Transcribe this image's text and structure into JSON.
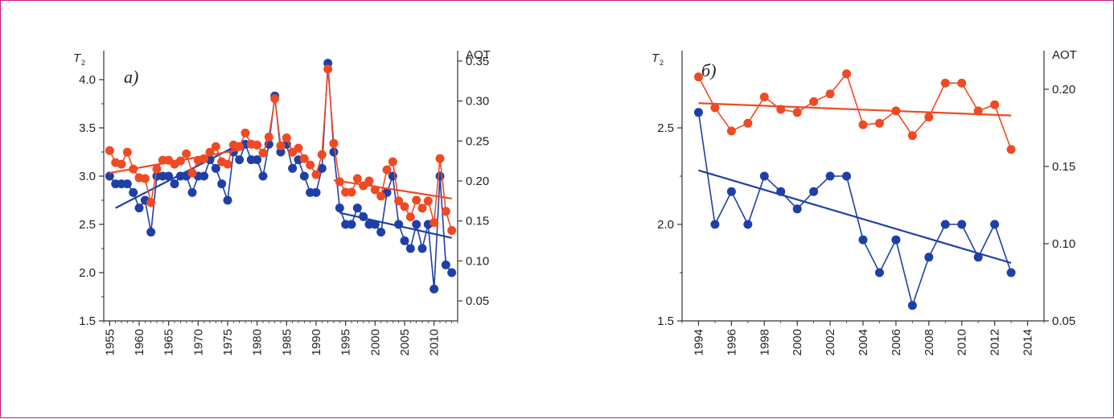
{
  "colors": {
    "t2": "#1f3fa8",
    "aot": "#ef4a23",
    "border": "#c8197c",
    "axis": "#333333"
  },
  "chart_data": [
    {
      "type": "line",
      "panel_label": "a)",
      "left_axis_label": "T",
      "left_axis_label_sub": "2",
      "right_axis_label": "AOT",
      "x_ticks": [
        "1955",
        "1960",
        "1965",
        "1970",
        "1975",
        "1980",
        "1985",
        "1990",
        "1995",
        "2000",
        "2005",
        "2010"
      ],
      "y_left_ticks": [
        "1.5",
        "2.0",
        "2.5",
        "3.0",
        "3.5",
        "4.0"
      ],
      "y_right_ticks": [
        "0.05",
        "0.10",
        "0.15",
        "0.20",
        "0.25",
        "0.30",
        "0.35"
      ],
      "xlim": [
        1954,
        2014
      ],
      "ylim_left": [
        1.5,
        4.3
      ],
      "ylim_right": [
        0.025,
        0.363
      ],
      "series": [
        {
          "axis": "left",
          "color_key": "t2",
          "x": [
            1955,
            1956,
            1957,
            1958,
            1959,
            1960,
            1961,
            1962,
            1963,
            1964,
            1965,
            1966,
            1967,
            1968,
            1969,
            1970,
            1971,
            1972,
            1973,
            1974,
            1975,
            1976,
            1977,
            1978,
            1979,
            1980,
            1981,
            1982,
            1983,
            1984,
            1985,
            1986,
            1987,
            1988,
            1989,
            1990,
            1991,
            1992,
            1993,
            1994,
            1995,
            1996,
            1997,
            1998,
            1999,
            2000,
            2001,
            2002,
            2003,
            2004,
            2005,
            2006,
            2007,
            2008,
            2009,
            2010,
            2011,
            2012,
            2013
          ],
          "y": [
            3.0,
            2.92,
            2.92,
            2.92,
            2.83,
            2.67,
            2.75,
            2.42,
            3.0,
            3.0,
            3.0,
            2.92,
            3.0,
            3.0,
            2.83,
            3.0,
            3.0,
            3.17,
            3.08,
            2.92,
            2.75,
            3.25,
            3.17,
            3.33,
            3.17,
            3.17,
            3.0,
            3.33,
            3.83,
            3.25,
            3.33,
            3.08,
            3.17,
            3.0,
            2.83,
            2.83,
            3.08,
            4.17,
            3.25,
            2.67,
            2.5,
            2.5,
            2.67,
            2.58,
            2.5,
            2.5,
            2.42,
            2.83,
            3.0,
            2.5,
            2.33,
            2.25,
            2.5,
            2.25,
            2.5,
            1.83,
            3.0,
            2.08,
            2.0
          ],
          "trends": [
            {
              "x": [
                1956,
                1977
              ],
              "y": [
                2.67,
                3.33
              ]
            },
            {
              "x": [
                1994,
                2013
              ],
              "y": [
                2.62,
                2.36
              ]
            }
          ]
        },
        {
          "axis": "right",
          "color_key": "aot",
          "x": [
            1955,
            1956,
            1957,
            1958,
            1959,
            1960,
            1961,
            1962,
            1963,
            1964,
            1965,
            1966,
            1967,
            1968,
            1969,
            1970,
            1971,
            1972,
            1973,
            1974,
            1975,
            1976,
            1977,
            1978,
            1979,
            1980,
            1981,
            1982,
            1983,
            1984,
            1985,
            1986,
            1987,
            1988,
            1989,
            1990,
            1991,
            1992,
            1993,
            1994,
            1995,
            1996,
            1997,
            1998,
            1999,
            2000,
            2001,
            2002,
            2003,
            2004,
            2005,
            2006,
            2007,
            2008,
            2009,
            2010,
            2011,
            2012,
            2013
          ],
          "y": [
            0.238,
            0.223,
            0.221,
            0.236,
            0.215,
            0.204,
            0.203,
            0.173,
            0.215,
            0.226,
            0.226,
            0.221,
            0.225,
            0.234,
            0.21,
            0.226,
            0.228,
            0.236,
            0.243,
            0.224,
            0.221,
            0.245,
            0.243,
            0.26,
            0.246,
            0.245,
            0.235,
            0.255,
            0.303,
            0.244,
            0.254,
            0.236,
            0.241,
            0.228,
            0.22,
            0.208,
            0.233,
            0.34,
            0.247,
            0.199,
            0.186,
            0.186,
            0.203,
            0.194,
            0.2,
            0.189,
            0.181,
            0.214,
            0.224,
            0.175,
            0.168,
            0.155,
            0.176,
            0.166,
            0.175,
            0.148,
            0.228,
            0.162,
            0.138
          ],
          "trends": [
            {
              "x": [
                1955,
                1977
              ],
              "y": [
                0.21,
                0.239
              ]
            },
            {
              "x": [
                1993,
                2013
              ],
              "y": [
                0.201,
                0.178
              ]
            }
          ]
        }
      ]
    },
    {
      "type": "line",
      "panel_label": "б)",
      "left_axis_label": "T",
      "left_axis_label_sub": "2",
      "right_axis_label": "AOT",
      "x_ticks": [
        "1994",
        "1996",
        "1998",
        "2000",
        "2002",
        "2004",
        "2006",
        "2008",
        "2010",
        "2012",
        "2014"
      ],
      "y_left_ticks": [
        "1.5",
        "2.0",
        "2.5"
      ],
      "y_right_ticks": [
        "0.05",
        "0.10",
        "0.15",
        "0.20"
      ],
      "xlim": [
        1993,
        2015
      ],
      "ylim_left": [
        1.5,
        2.9
      ],
      "ylim_right": [
        0.05,
        0.225
      ],
      "series": [
        {
          "axis": "left",
          "color_key": "t2",
          "x": [
            1994,
            1995,
            1996,
            1997,
            1998,
            1999,
            2000,
            2001,
            2002,
            2003,
            2004,
            2005,
            2006,
            2007,
            2008,
            2009,
            2010,
            2011,
            2012,
            2013
          ],
          "y": [
            2.58,
            2.0,
            2.17,
            2.0,
            2.25,
            2.17,
            2.08,
            2.17,
            2.25,
            2.25,
            1.92,
            1.75,
            1.92,
            1.58,
            1.83,
            2.0,
            2.0,
            1.83,
            2.0,
            1.75
          ],
          "trends": [
            {
              "x": [
                1994,
                2013
              ],
              "y": [
                2.28,
                1.8
              ]
            }
          ]
        },
        {
          "axis": "right",
          "color_key": "aot",
          "x": [
            1994,
            1995,
            1996,
            1997,
            1998,
            1999,
            2000,
            2001,
            2002,
            2003,
            2004,
            2005,
            2006,
            2007,
            2008,
            2009,
            2010,
            2011,
            2012,
            2013
          ],
          "y": [
            0.208,
            0.188,
            0.173,
            0.178,
            0.195,
            0.187,
            0.185,
            0.192,
            0.197,
            0.21,
            0.177,
            0.178,
            0.186,
            0.17,
            0.182,
            0.204,
            0.204,
            0.186,
            0.19,
            0.161
          ],
          "trends": [
            {
              "x": [
                1994,
                2013
              ],
              "y": [
                0.191,
                0.183
              ]
            }
          ]
        }
      ]
    }
  ]
}
